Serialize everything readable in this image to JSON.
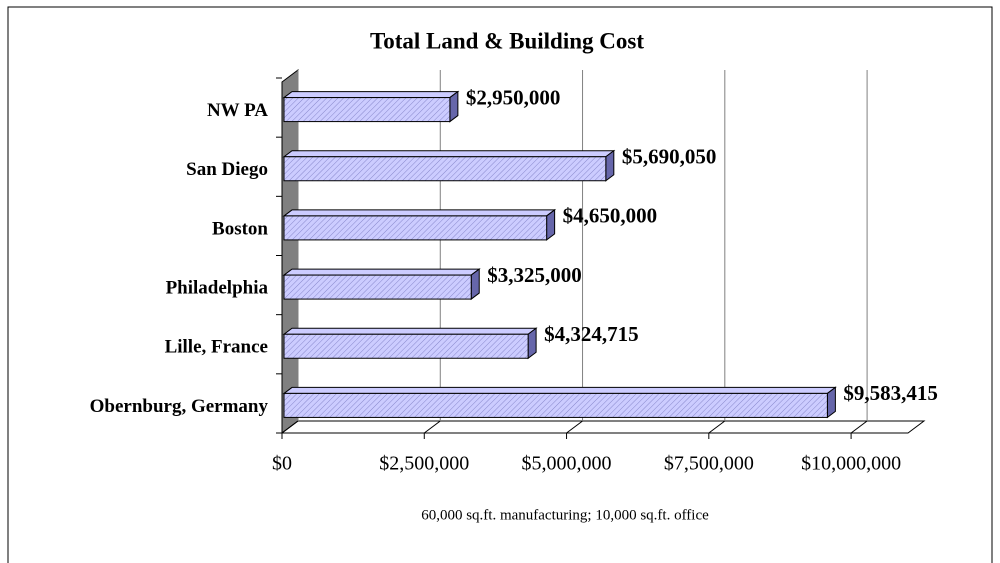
{
  "chart_data": {
    "type": "bar",
    "orientation": "horizontal",
    "title": "Total Land & Building Cost",
    "x_label": "60,000 sq.ft. manufacturing; 10,000 sq.ft. office",
    "categories": [
      "NW PA",
      "San Diego",
      "Boston",
      "Philadelphia",
      "Lille, France",
      "Obernburg, Germany"
    ],
    "values": [
      2950000,
      5690050,
      4650000,
      3325000,
      4324715,
      9583415
    ],
    "value_labels": [
      "$2,950,000",
      "$5,690,050",
      "$4,650,000",
      "$3,325,000",
      "$4,324,715",
      "$9,583,415"
    ],
    "color": "#ccccff",
    "xlim": [
      0,
      11000000
    ],
    "xticks": [
      {
        "value": 0,
        "label": "$0"
      },
      {
        "value": 2500000,
        "label": "$2,500,000"
      },
      {
        "value": 5000000,
        "label": "$5,000,000"
      },
      {
        "value": 7500000,
        "label": "$7,500,000"
      },
      {
        "value": 10000000,
        "label": "$10,000,000"
      }
    ],
    "grid": true
  }
}
